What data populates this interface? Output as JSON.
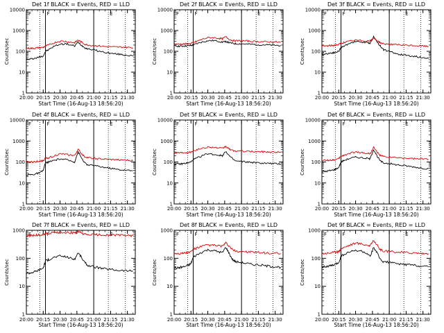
{
  "figure": {
    "xlabel": "Start Time (16-Aug-13 18:56:20)",
    "ylabel": "Counts/sec",
    "x_tick_labels": [
      "20:00",
      "20:15",
      "20:30",
      "20:45",
      "21:00",
      "21:15",
      "21:30"
    ],
    "y_tick_labels": [
      "1",
      "10",
      "100",
      "1000",
      "10000"
    ],
    "letter_labels": {
      "a": "F",
      "b": "F",
      "c": "E"
    },
    "colors": {
      "events": "#000000",
      "lld": "#dd0000",
      "axes": "#000000",
      "background": "#ffffff"
    }
  },
  "chart_data": [
    {
      "type": "line",
      "title": "Det 1f BLACK = Events, RED = LLD",
      "x": [
        "20:00",
        "20:03",
        "20:06",
        "20:09",
        "20:12",
        "20:15",
        "20:17",
        "20:20",
        "20:25",
        "20:30",
        "20:35",
        "20:40",
        "20:43",
        "20:46",
        "20:49",
        "20:52",
        "20:55",
        "21:00",
        "21:05",
        "21:10",
        "21:15",
        "21:20",
        "21:25",
        "21:30",
        "21:35"
      ],
      "xlim": [
        "20:00",
        "21:37"
      ],
      "ylim": [
        1,
        10000
      ],
      "yscale": "log",
      "vlines_solid": [
        "20:17",
        "21:00"
      ],
      "vlines_dotted": [
        "20:12",
        "21:13",
        "21:28"
      ],
      "series": [
        {
          "name": "BLACK = Events",
          "color": "#000000",
          "values": [
            40,
            42,
            45,
            48,
            55,
            60,
            100,
            120,
            180,
            220,
            230,
            200,
            180,
            280,
            200,
            150,
            130,
            120,
            100,
            90,
            80,
            75,
            70,
            65,
            60
          ]
        },
        {
          "name": "RED = LLD",
          "color": "#dd0000",
          "values": [
            140,
            140,
            140,
            145,
            150,
            155,
            180,
            200,
            260,
            310,
            300,
            270,
            260,
            350,
            280,
            220,
            200,
            190,
            180,
            170,
            165,
            160,
            160,
            155,
            150
          ]
        }
      ]
    },
    {
      "type": "line",
      "title": "Det 2f BLACK = Events, RED = LLD",
      "x": [
        "20:00",
        "20:03",
        "20:06",
        "20:09",
        "20:12",
        "20:15",
        "20:17",
        "20:20",
        "20:25",
        "20:30",
        "20:35",
        "20:40",
        "20:43",
        "20:46",
        "20:49",
        "20:52",
        "20:55",
        "21:00",
        "21:05",
        "21:10",
        "21:15",
        "21:20",
        "21:25",
        "21:30",
        "21:35"
      ],
      "xlim": [
        "20:00",
        "21:37"
      ],
      "ylim": [
        1,
        10000
      ],
      "yscale": "log",
      "vlines_solid": [
        "20:17",
        "21:00"
      ],
      "vlines_dotted": [
        "20:12",
        "21:13",
        "21:28"
      ],
      "series": [
        {
          "name": "BLACK = Events",
          "color": "#000000",
          "values": [
            180,
            180,
            175,
            180,
            185,
            190,
            200,
            230,
            280,
            320,
            330,
            300,
            280,
            300,
            260,
            240,
            230,
            230,
            220,
            215,
            210,
            205,
            200,
            195,
            190
          ]
        },
        {
          "name": "RED = LLD",
          "color": "#dd0000",
          "values": [
            220,
            220,
            220,
            225,
            230,
            240,
            260,
            300,
            380,
            450,
            460,
            420,
            400,
            500,
            380,
            330,
            320,
            320,
            310,
            300,
            295,
            290,
            285,
            280,
            270
          ]
        }
      ]
    },
    {
      "type": "line",
      "title": "Det 3f BLACK = Events, RED = LLD",
      "x": [
        "20:00",
        "20:03",
        "20:06",
        "20:09",
        "20:12",
        "20:15",
        "20:17",
        "20:20",
        "20:25",
        "20:30",
        "20:35",
        "20:40",
        "20:43",
        "20:46",
        "20:49",
        "20:52",
        "20:55",
        "21:00",
        "21:05",
        "21:10",
        "21:15",
        "21:20",
        "21:25",
        "21:30",
        "21:35"
      ],
      "xlim": [
        "20:00",
        "21:37"
      ],
      "ylim": [
        1,
        10000
      ],
      "yscale": "log",
      "vlines_solid": [
        "20:17",
        "21:00"
      ],
      "vlines_dotted": [
        "20:12",
        "21:13",
        "21:28"
      ],
      "series": [
        {
          "name": "BLACK = Events",
          "color": "#000000",
          "values": [
            70,
            75,
            80,
            85,
            90,
            100,
            150,
            180,
            250,
            300,
            280,
            260,
            250,
            500,
            300,
            180,
            120,
            100,
            80,
            70,
            65,
            60,
            55,
            50,
            45
          ]
        },
        {
          "name": "RED = LLD",
          "color": "#dd0000",
          "values": [
            180,
            180,
            185,
            190,
            200,
            210,
            250,
            270,
            310,
            340,
            330,
            320,
            320,
            420,
            340,
            260,
            230,
            220,
            210,
            200,
            195,
            190,
            185,
            180,
            170
          ]
        }
      ]
    },
    {
      "type": "line",
      "title": "Det 4f BLACK = Events, RED = LLD",
      "x": [
        "20:00",
        "20:03",
        "20:06",
        "20:09",
        "20:12",
        "20:15",
        "20:17",
        "20:20",
        "20:25",
        "20:30",
        "20:35",
        "20:40",
        "20:43",
        "20:46",
        "20:49",
        "20:52",
        "20:55",
        "21:00",
        "21:05",
        "21:10",
        "21:15",
        "21:20",
        "21:25",
        "21:30",
        "21:35"
      ],
      "xlim": [
        "20:00",
        "21:37"
      ],
      "ylim": [
        1,
        10000
      ],
      "yscale": "log",
      "vlines_solid": [
        "20:17",
        "21:00"
      ],
      "vlines_dotted": [
        "20:12",
        "21:13",
        "21:28"
      ],
      "series": [
        {
          "name": "BLACK = Events",
          "color": "#000000",
          "values": [
            25,
            25,
            25,
            28,
            30,
            40,
            90,
            100,
            120,
            140,
            130,
            110,
            100,
            300,
            160,
            90,
            70,
            70,
            60,
            55,
            50,
            45,
            42,
            40,
            38
          ]
        },
        {
          "name": "RED = LLD",
          "color": "#dd0000",
          "values": [
            100,
            100,
            100,
            105,
            110,
            115,
            150,
            160,
            200,
            240,
            230,
            210,
            200,
            400,
            250,
            180,
            160,
            150,
            140,
            135,
            130,
            128,
            125,
            120,
            115
          ]
        }
      ]
    },
    {
      "type": "line",
      "title": "Det 5f BLACK = Events, RED = LLD",
      "x": [
        "20:00",
        "20:03",
        "20:06",
        "20:09",
        "20:12",
        "20:15",
        "20:17",
        "20:20",
        "20:25",
        "20:30",
        "20:35",
        "20:40",
        "20:43",
        "20:46",
        "20:49",
        "20:52",
        "20:55",
        "21:00",
        "21:05",
        "21:10",
        "21:15",
        "21:20",
        "21:25",
        "21:30",
        "21:35"
      ],
      "xlim": [
        "20:00",
        "21:37"
      ],
      "ylim": [
        1,
        10000
      ],
      "yscale": "log",
      "vlines_solid": [
        "20:17",
        "21:00"
      ],
      "vlines_dotted": [
        "20:12",
        "21:13",
        "21:28"
      ],
      "series": [
        {
          "name": "BLACK = Events",
          "color": "#000000",
          "values": [
            80,
            80,
            80,
            85,
            90,
            100,
            130,
            150,
            200,
            250,
            230,
            210,
            200,
            330,
            200,
            140,
            110,
            105,
            100,
            95,
            90,
            88,
            85,
            82,
            80
          ]
        },
        {
          "name": "RED = LLD",
          "color": "#dd0000",
          "values": [
            280,
            280,
            280,
            285,
            290,
            300,
            350,
            380,
            450,
            520,
            500,
            460,
            440,
            550,
            420,
            350,
            330,
            330,
            320,
            315,
            310,
            305,
            300,
            295,
            290
          ]
        }
      ]
    },
    {
      "type": "line",
      "title": "Det 6f BLACK = Events, RED = LLD",
      "x": [
        "20:00",
        "20:03",
        "20:06",
        "20:09",
        "20:12",
        "20:15",
        "20:17",
        "20:20",
        "20:25",
        "20:30",
        "20:35",
        "20:40",
        "20:43",
        "20:46",
        "20:49",
        "20:52",
        "20:55",
        "21:00",
        "21:05",
        "21:10",
        "21:15",
        "21:20",
        "21:25",
        "21:30",
        "21:35"
      ],
      "xlim": [
        "20:00",
        "21:37"
      ],
      "ylim": [
        1,
        10000
      ],
      "yscale": "log",
      "vlines_solid": [
        "20:17",
        "21:00"
      ],
      "vlines_dotted": [
        "20:12",
        "21:13",
        "21:28"
      ],
      "series": [
        {
          "name": "BLACK = Events",
          "color": "#000000",
          "values": [
            35,
            35,
            38,
            40,
            45,
            55,
            100,
            120,
            150,
            170,
            160,
            150,
            140,
            400,
            200,
            110,
            90,
            85,
            75,
            70,
            65,
            60,
            55,
            50,
            48
          ]
        },
        {
          "name": "RED = LLD",
          "color": "#dd0000",
          "values": [
            120,
            120,
            120,
            125,
            130,
            140,
            190,
            210,
            260,
            300,
            280,
            260,
            250,
            500,
            300,
            200,
            180,
            170,
            160,
            155,
            150,
            145,
            140,
            138,
            135
          ]
        }
      ]
    },
    {
      "type": "line",
      "title": "Det 7f BLACK = Events, RED = LLD",
      "x": [
        "20:00",
        "20:03",
        "20:06",
        "20:09",
        "20:12",
        "20:15",
        "20:17",
        "20:20",
        "20:25",
        "20:30",
        "20:35",
        "20:40",
        "20:43",
        "20:46",
        "20:49",
        "20:52",
        "20:55",
        "21:00",
        "21:05",
        "21:10",
        "21:15",
        "21:20",
        "21:25",
        "21:30",
        "21:35"
      ],
      "xlim": [
        "20:00",
        "21:37"
      ],
      "ylim": [
        1,
        1000
      ],
      "yscale": "log",
      "vlines_solid": [
        "20:17",
        "21:00"
      ],
      "vlines_dotted": [
        "20:12",
        "21:13",
        "21:28"
      ],
      "series": [
        {
          "name": "BLACK = Events",
          "color": "#000000",
          "values": [
            30,
            30,
            32,
            35,
            40,
            45,
            80,
            90,
            110,
            120,
            115,
            100,
            90,
            160,
            110,
            70,
            55,
            50,
            45,
            42,
            40,
            38,
            37,
            36,
            35
          ]
        },
        {
          "name": "RED = LLD",
          "color": "#dd0000",
          "values": [
            650,
            650,
            660,
            670,
            680,
            700,
            760,
            780,
            820,
            850,
            840,
            820,
            800,
            880,
            800,
            720,
            700,
            700,
            690,
            680,
            675,
            670,
            665,
            660,
            650
          ]
        }
      ]
    },
    {
      "type": "line",
      "title": "Det 8f BLACK = Events, RED = LLD",
      "x": [
        "20:00",
        "20:03",
        "20:06",
        "20:09",
        "20:12",
        "20:15",
        "20:17",
        "20:20",
        "20:25",
        "20:30",
        "20:35",
        "20:40",
        "20:43",
        "20:46",
        "20:49",
        "20:52",
        "20:55",
        "21:00",
        "21:05",
        "21:10",
        "21:15",
        "21:20",
        "21:25",
        "21:30",
        "21:35"
      ],
      "xlim": [
        "20:00",
        "21:37"
      ],
      "ylim": [
        1,
        1000
      ],
      "yscale": "log",
      "vlines_solid": [
        "20:17",
        "21:00"
      ],
      "vlines_dotted": [
        "20:12",
        "21:13",
        "21:28"
      ],
      "series": [
        {
          "name": "BLACK = Events",
          "color": "#000000",
          "values": [
            45,
            45,
            48,
            50,
            55,
            65,
            110,
            130,
            170,
            200,
            190,
            170,
            160,
            250,
            150,
            90,
            75,
            70,
            65,
            60,
            58,
            55,
            52,
            50,
            48
          ]
        },
        {
          "name": "RED = LLD",
          "color": "#dd0000",
          "values": [
            150,
            150,
            150,
            155,
            160,
            170,
            210,
            230,
            270,
            300,
            290,
            280,
            270,
            350,
            270,
            200,
            180,
            175,
            170,
            165,
            160,
            155,
            152,
            150,
            145
          ]
        }
      ]
    },
    {
      "type": "line",
      "title": "Det 9f BLACK = Events, RED = LLD",
      "x": [
        "20:00",
        "20:03",
        "20:06",
        "20:09",
        "20:12",
        "20:15",
        "20:17",
        "20:20",
        "20:25",
        "20:30",
        "20:35",
        "20:40",
        "20:43",
        "20:46",
        "20:49",
        "20:52",
        "20:55",
        "21:00",
        "21:05",
        "21:10",
        "21:15",
        "21:20",
        "21:25",
        "21:30",
        "21:35"
      ],
      "xlim": [
        "20:00",
        "21:37"
      ],
      "ylim": [
        1,
        1000
      ],
      "yscale": "log",
      "vlines_solid": [
        "20:17",
        "21:00"
      ],
      "vlines_dotted": [
        "20:12",
        "21:13",
        "21:28"
      ],
      "series": [
        {
          "name": "BLACK = Events",
          "color": "#000000",
          "values": [
            50,
            50,
            52,
            55,
            60,
            70,
            120,
            140,
            170,
            190,
            180,
            150,
            110,
            250,
            160,
            90,
            75,
            72,
            65,
            62,
            60,
            58,
            55,
            52,
            50
          ]
        },
        {
          "name": "RED = LLD",
          "color": "#dd0000",
          "values": [
            150,
            150,
            155,
            160,
            165,
            175,
            220,
            250,
            300,
            350,
            330,
            300,
            280,
            450,
            300,
            200,
            180,
            175,
            170,
            165,
            160,
            158,
            155,
            150,
            148
          ]
        }
      ]
    }
  ]
}
